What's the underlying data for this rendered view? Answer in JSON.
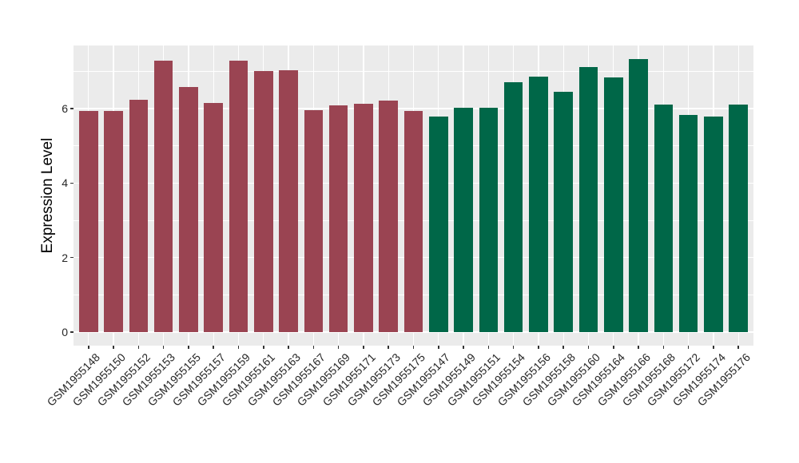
{
  "chart_data": {
    "type": "bar",
    "title": "",
    "xlabel": "",
    "ylabel": "Expression Level",
    "y_ticks": [
      0,
      2,
      4,
      6
    ],
    "y_minor_ticks": [
      1,
      3,
      5,
      7
    ],
    "ylim": [
      -0.37,
      7.7
    ],
    "grid": "on",
    "legend": "none",
    "panel_bg": "#EBEBEB",
    "grid_color": "#FFFFFF",
    "axis_text_color": "#262626",
    "tick_mark_color": "#333333",
    "group_colors": {
      "left_group": "#9A4452",
      "right_group": "#006748"
    },
    "categories": [
      "GSM1955148",
      "GSM1955150",
      "GSM1955152",
      "GSM1955153",
      "GSM1955155",
      "GSM1955157",
      "GSM1955159",
      "GSM1955161",
      "GSM1955163",
      "GSM1955167",
      "GSM1955169",
      "GSM1955171",
      "GSM1955173",
      "GSM1955175",
      "GSM1955147",
      "GSM1955149",
      "GSM1955151",
      "GSM1955154",
      "GSM1955156",
      "GSM1955158",
      "GSM1955160",
      "GSM1955164",
      "GSM1955166",
      "GSM1955168",
      "GSM1955172",
      "GSM1955174",
      "GSM1955176"
    ],
    "values": [
      5.95,
      5.95,
      6.24,
      7.3,
      6.58,
      6.15,
      7.3,
      7.01,
      7.04,
      5.97,
      6.1,
      6.13,
      6.22,
      5.95,
      5.79,
      6.02,
      6.03,
      6.71,
      6.86,
      6.46,
      7.11,
      6.84,
      7.33,
      6.11,
      5.84,
      5.79,
      6.12
    ],
    "bar_colors": [
      "#9A4452",
      "#9A4452",
      "#9A4452",
      "#9A4452",
      "#9A4452",
      "#9A4452",
      "#9A4452",
      "#9A4452",
      "#9A4452",
      "#9A4452",
      "#9A4452",
      "#9A4452",
      "#9A4452",
      "#9A4452",
      "#006748",
      "#006748",
      "#006748",
      "#006748",
      "#006748",
      "#006748",
      "#006748",
      "#006748",
      "#006748",
      "#006748",
      "#006748",
      "#006748",
      "#006748"
    ]
  }
}
